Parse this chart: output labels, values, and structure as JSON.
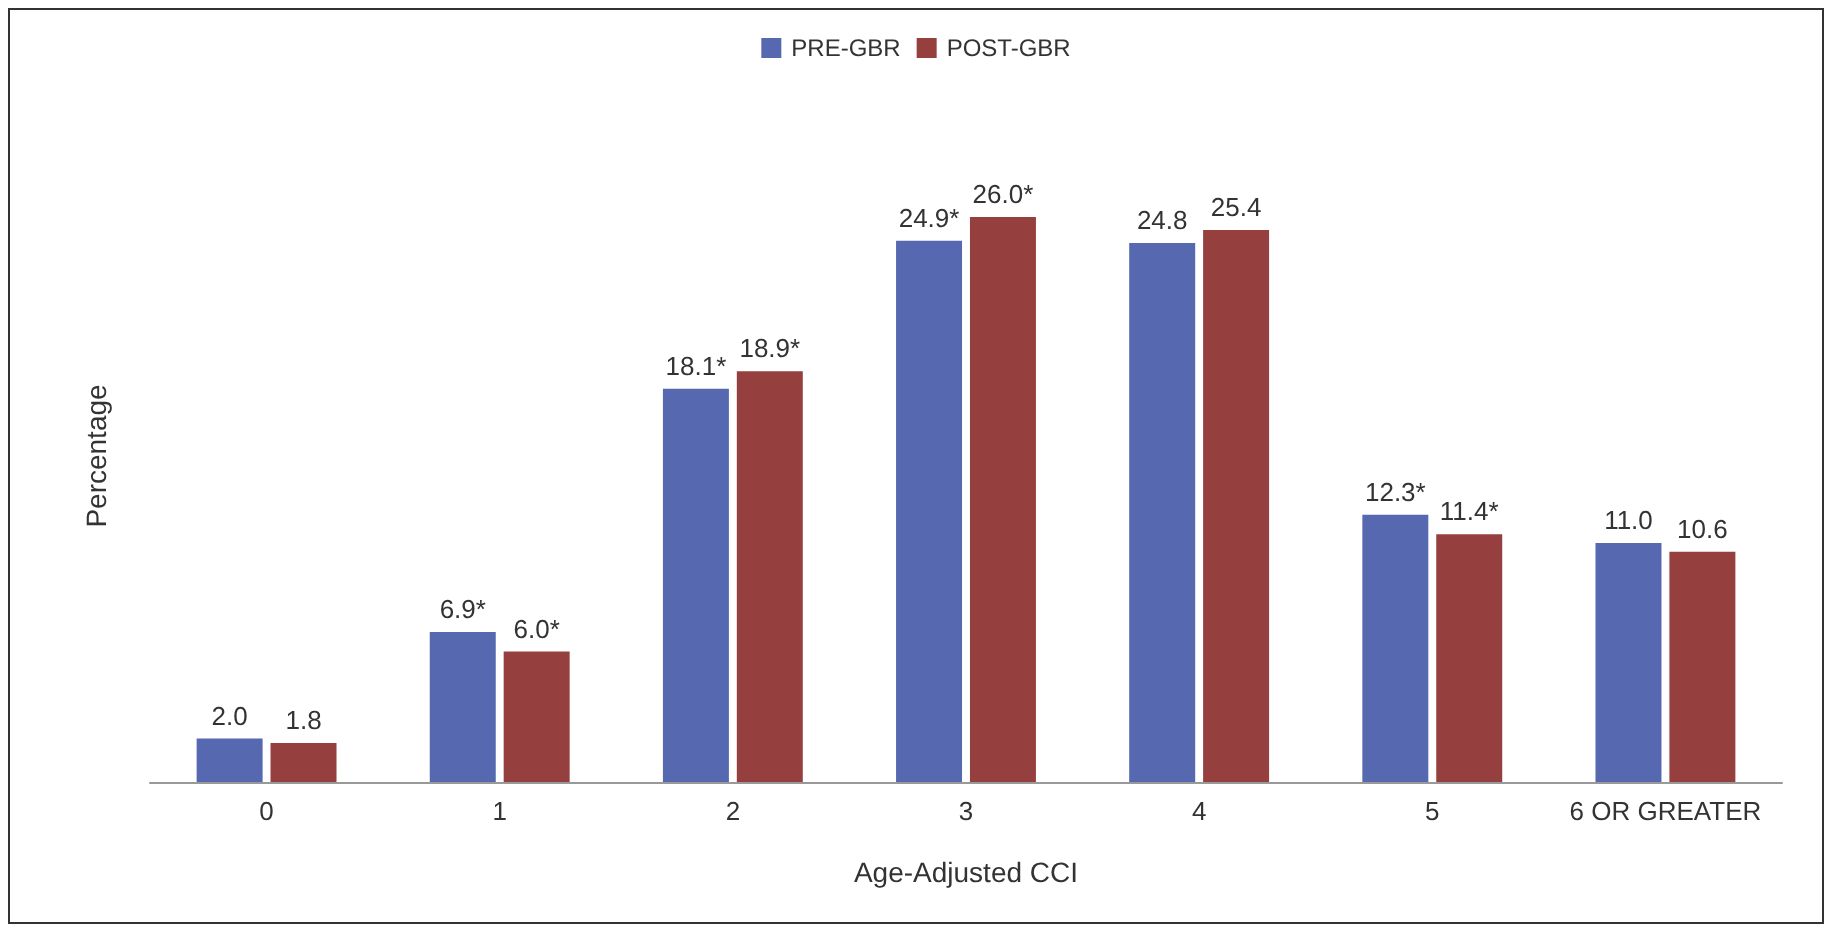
{
  "chart_data": {
    "type": "bar",
    "xlabel": "Age-Adjusted CCI",
    "ylabel": "Percentage",
    "categories": [
      "0",
      "1",
      "2",
      "3",
      "4",
      "5",
      "6 OR GREATER"
    ],
    "series": [
      {
        "name": "PRE-GBR",
        "color": "#5568b0",
        "values": [
          2.0,
          6.9,
          18.1,
          24.9,
          24.8,
          12.3,
          11.0
        ],
        "value_labels": [
          "2.0",
          "6.9*",
          "18.1*",
          "24.9*",
          "24.8",
          "12.3*",
          "11.0"
        ]
      },
      {
        "name": "POST-GBR",
        "color": "#963f3f",
        "values": [
          1.8,
          6.0,
          18.9,
          26.0,
          25.4,
          11.4,
          10.6
        ],
        "value_labels": [
          "1.8",
          "6.0*",
          "18.9*",
          "26.0*",
          "25.4",
          "11.4*",
          "10.6"
        ]
      }
    ],
    "legend": "top",
    "grid": false
  }
}
